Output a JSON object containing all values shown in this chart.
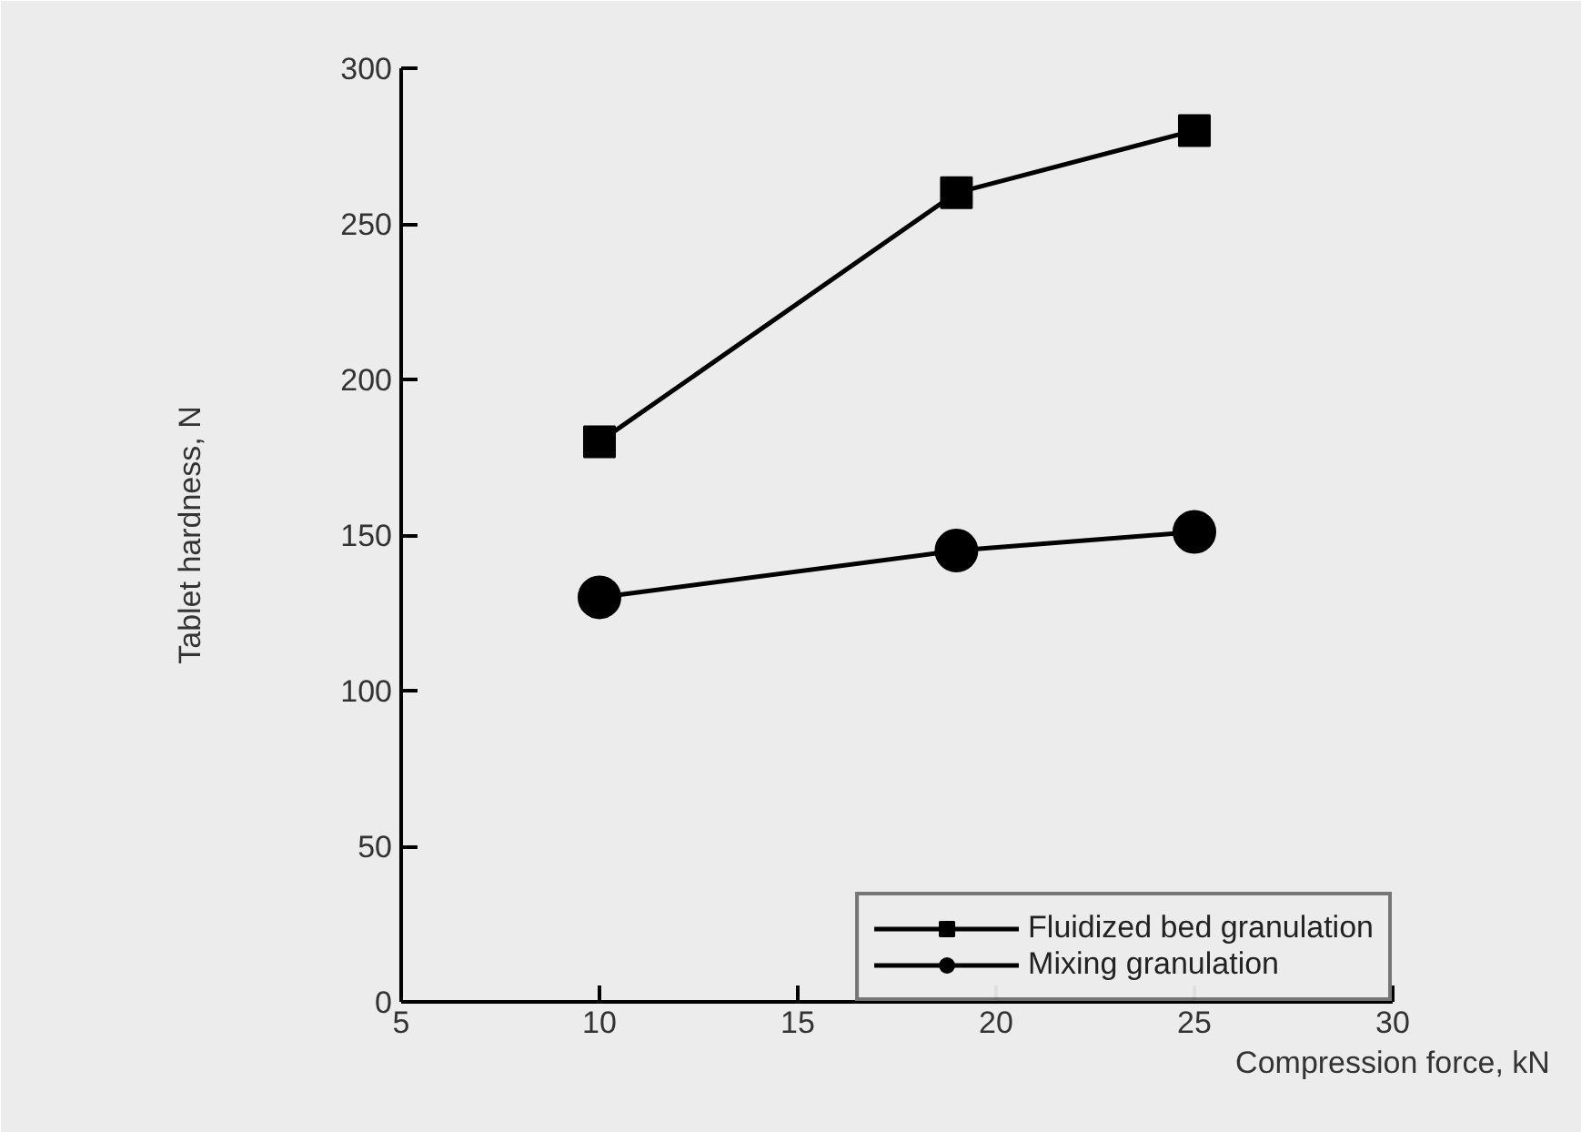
{
  "chart_data": {
    "type": "line",
    "xlabel": "Compression force, kN",
    "ylabel": "Tablet hardness, N",
    "xlim": [
      5,
      30
    ],
    "xticks": [
      5,
      10,
      15,
      20,
      25,
      30
    ],
    "ylim": [
      0,
      300
    ],
    "yticks": [
      0,
      50,
      100,
      150,
      200,
      250,
      300
    ],
    "grid": false,
    "legend": "bottom right",
    "line_style": "solid",
    "series": [
      {
        "name": "Fluidized bed granulation",
        "color": "#000000",
        "marker": "square",
        "x": [
          10,
          19,
          25
        ],
        "values": [
          180,
          260,
          280
        ]
      },
      {
        "name": "Mixing granulation",
        "color": "#000000",
        "marker": "circle",
        "x": [
          10,
          19,
          25
        ],
        "values": [
          130,
          145,
          151
        ]
      }
    ]
  }
}
